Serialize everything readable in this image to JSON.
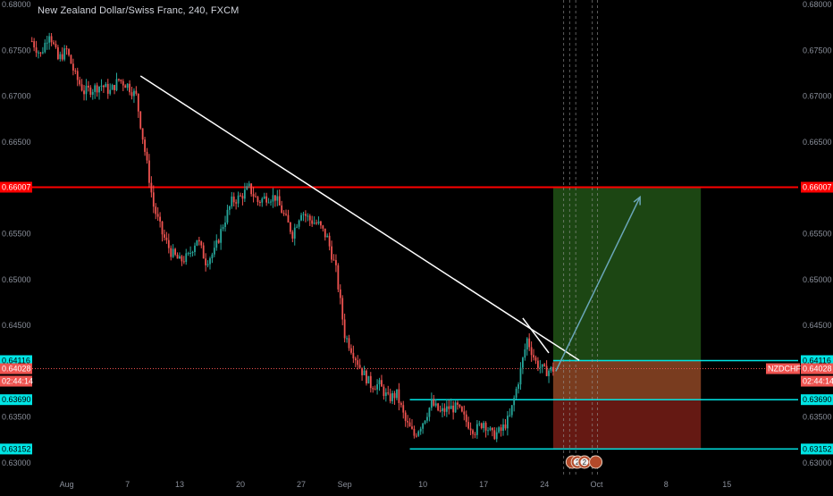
{
  "title": "New Zealand Dollar/Swiss Franc, 240, FXCM",
  "colors": {
    "background": "#000000",
    "up": "#26a69a",
    "down": "#ef5350",
    "axis_text": "#8a8f9a",
    "resistance": "#ff0000",
    "support": "#00e5e5",
    "trendline": "#ffffff",
    "projection": "#6aa6b8",
    "target_zone": "#1e4a14",
    "stop_zone": "#6a1a14",
    "current_price": "#ef5350"
  },
  "chart_data": {
    "type": "candlestick",
    "symbol": "NZDCHF",
    "interval": "240",
    "source": "FXCM",
    "ylim": [
      0.628,
      0.681
    ],
    "y_ticks": [
      "0.63000",
      "0.63500",
      "0.64000",
      "0.64500",
      "0.65000",
      "0.65500",
      "0.66000",
      "0.66500",
      "0.67000",
      "0.67500",
      "0.68000"
    ],
    "x_ticks": [
      {
        "label": "Aug",
        "day": -1
      },
      {
        "label": "7",
        "day": 6
      },
      {
        "label": "13",
        "day": 12
      },
      {
        "label": "20",
        "day": 19
      },
      {
        "label": "27",
        "day": 26
      },
      {
        "label": "Sep",
        "day": 31
      },
      {
        "label": "10",
        "day": 40
      },
      {
        "label": "17",
        "day": 47
      },
      {
        "label": "24",
        "day": 54
      },
      {
        "label": "Oct",
        "day": 60
      },
      {
        "label": "8",
        "day": 68
      },
      {
        "label": "15",
        "day": 75
      }
    ],
    "price_path": [
      [
        -5,
        0.676
      ],
      [
        -4,
        0.6745
      ],
      [
        -3,
        0.677
      ],
      [
        -2,
        0.674
      ],
      [
        -1,
        0.675
      ],
      [
        0,
        0.6722
      ],
      [
        1,
        0.6705
      ],
      [
        2,
        0.6708
      ],
      [
        3,
        0.6712
      ],
      [
        4,
        0.6705
      ],
      [
        5,
        0.6718
      ],
      [
        6,
        0.6712
      ],
      [
        7,
        0.67
      ],
      [
        8,
        0.664
      ],
      [
        9,
        0.658
      ],
      [
        10,
        0.655
      ],
      [
        11,
        0.653
      ],
      [
        12,
        0.652
      ],
      [
        13,
        0.6525
      ],
      [
        14,
        0.6545
      ],
      [
        15,
        0.652
      ],
      [
        16,
        0.653
      ],
      [
        17,
        0.656
      ],
      [
        18,
        0.6585
      ],
      [
        19,
        0.659
      ],
      [
        20,
        0.66
      ],
      [
        21,
        0.6585
      ],
      [
        22,
        0.659
      ],
      [
        23,
        0.659
      ],
      [
        24,
        0.657
      ],
      [
        25,
        0.655
      ],
      [
        26,
        0.6575
      ],
      [
        27,
        0.6565
      ],
      [
        28,
        0.656
      ],
      [
        29,
        0.6545
      ],
      [
        30,
        0.651
      ],
      [
        31,
        0.644
      ],
      [
        32,
        0.642
      ],
      [
        33,
        0.64
      ],
      [
        34,
        0.6385
      ],
      [
        35,
        0.6385
      ],
      [
        36,
        0.637
      ],
      [
        37,
        0.6375
      ],
      [
        38,
        0.6345
      ],
      [
        39,
        0.633
      ],
      [
        40,
        0.6345
      ],
      [
        41,
        0.6365
      ],
      [
        42,
        0.6355
      ],
      [
        43,
        0.636
      ],
      [
        44,
        0.636
      ],
      [
        45,
        0.6345
      ],
      [
        46,
        0.6335
      ],
      [
        47,
        0.6345
      ],
      [
        48,
        0.633
      ],
      [
        49,
        0.6335
      ],
      [
        50,
        0.635
      ],
      [
        51,
        0.639
      ],
      [
        52,
        0.6435
      ],
      [
        53,
        0.641
      ],
      [
        54,
        0.64
      ],
      [
        55,
        0.6402
      ]
    ],
    "levels": {
      "resistance": {
        "value": 0.66007,
        "label": "0.66007"
      },
      "current": {
        "value": 0.64028,
        "label": "0.64028",
        "countdown": "02:44:14",
        "symbol_label": "NZDCHF"
      },
      "entry": {
        "value": 0.64116,
        "label": "0.64116",
        "from_day": 55
      },
      "support": {
        "value": 0.6369,
        "label": "0.63690",
        "from_day": 38.5
      },
      "low_support": {
        "value": 0.63152,
        "label": "0.63152",
        "from_day": 38.5
      }
    },
    "long_position": {
      "start_day": 55,
      "end_day": 72,
      "entry": 0.64116,
      "target": 0.66007,
      "stop": 0.63152
    },
    "trendlines": [
      {
        "name": "main-downtrend-line",
        "from": [
          7.5,
          0.6722
        ],
        "to": [
          58,
          0.6412
        ]
      },
      {
        "name": "short-trendline",
        "from": [
          51.5,
          0.6458
        ],
        "to": [
          54.5,
          0.642
        ]
      }
    ],
    "projection_arrow": {
      "from": [
        55.3,
        0.64
      ],
      "to": [
        65,
        0.659
      ]
    },
    "vertical_markers_days": [
      56.2,
      56.9,
      57.6,
      59.5,
      60.1
    ],
    "event_badges": [
      {
        "text": "",
        "day": 57.2
      },
      {
        "text": "2",
        "day": 57.8
      },
      {
        "text": "2",
        "day": 58.6
      },
      {
        "text": "",
        "day": 59.9
      }
    ]
  }
}
